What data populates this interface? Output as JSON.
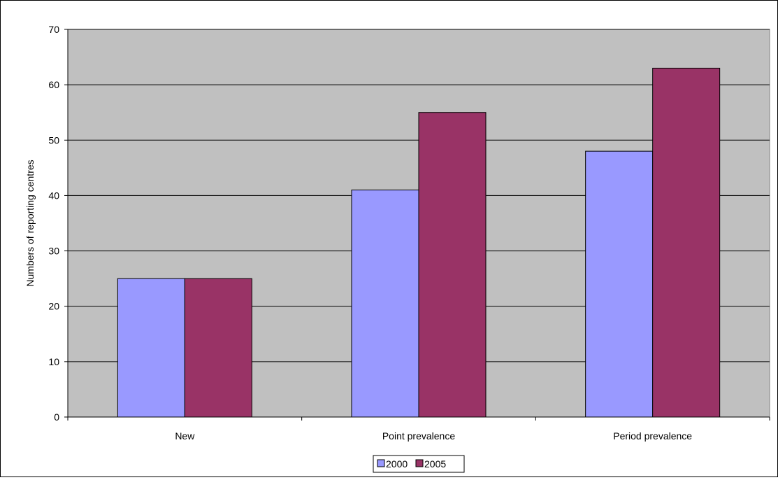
{
  "chart_data": {
    "type": "bar",
    "title": "",
    "xlabel": "",
    "ylabel": "Numbers of reporting centres",
    "categories": [
      "New",
      "Point prevalence",
      "Period prevalence"
    ],
    "series": [
      {
        "name": "2000",
        "values": [
          25,
          41,
          48
        ],
        "color": "#9999FF"
      },
      {
        "name": "2005",
        "values": [
          25,
          55,
          63
        ],
        "color": "#993366"
      }
    ],
    "ylim": [
      0,
      70
    ],
    "yticks": [
      "0",
      "10",
      "20",
      "30",
      "40",
      "50",
      "60",
      "70"
    ],
    "grid": true,
    "legend_position": "bottom-center",
    "plot_background": "#C0C0C0"
  }
}
